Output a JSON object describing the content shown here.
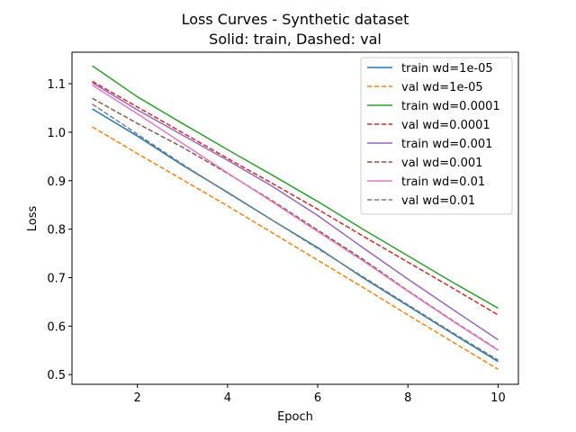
{
  "chart_data": {
    "type": "line",
    "title": "Loss Curves - Synthetic dataset",
    "subtitle": "Solid: train, Dashed: val",
    "xlabel": "Epoch",
    "ylabel": "Loss",
    "xlim": [
      0.55,
      10.45
    ],
    "ylim": [
      0.48,
      1.165
    ],
    "xticks": [
      2,
      4,
      6,
      8,
      10
    ],
    "yticks": [
      0.5,
      0.6,
      0.7,
      0.8,
      0.9,
      1.0,
      1.1
    ],
    "ytick_labels": [
      "0.5",
      "0.6",
      "0.7",
      "0.8",
      "0.9",
      "1.0",
      "1.1"
    ],
    "grid": false,
    "legend_position": "top-right",
    "x": [
      1,
      2,
      3,
      4,
      5,
      6,
      7,
      8,
      9,
      10
    ],
    "series": [
      {
        "name": "train wd=1e-05",
        "color": "#1f77b4",
        "dashed": false,
        "values": [
          1.048,
          0.992,
          0.932,
          0.876,
          0.818,
          0.762,
          0.7,
          0.642,
          0.584,
          0.527
        ]
      },
      {
        "name": "val wd=1e-05",
        "color": "#ff7f0e",
        "dashed": true,
        "values": [
          1.011,
          0.956,
          0.902,
          0.848,
          0.792,
          0.736,
          0.68,
          0.623,
          0.567,
          0.511
        ]
      },
      {
        "name": "train wd=0.0001",
        "color": "#2ca02c",
        "dashed": false,
        "values": [
          1.137,
          1.073,
          1.018,
          0.964,
          0.911,
          0.857,
          0.8,
          0.745,
          0.69,
          0.637
        ]
      },
      {
        "name": "val wd=0.0001",
        "color": "#d62728",
        "dashed": true,
        "values": [
          1.105,
          1.052,
          0.999,
          0.946,
          0.894,
          0.841,
          0.786,
          0.732,
          0.678,
          0.623
        ]
      },
      {
        "name": "train wd=0.001",
        "color": "#9467bd",
        "dashed": false,
        "values": [
          1.102,
          1.046,
          0.994,
          0.942,
          0.888,
          0.828,
          0.762,
          0.697,
          0.634,
          0.572
        ]
      },
      {
        "name": "val wd=0.001",
        "color": "#8c564b",
        "dashed": true,
        "values": [
          1.07,
          1.018,
          0.969,
          0.915,
          0.858,
          0.798,
          0.738,
          0.673,
          0.611,
          0.551
        ]
      },
      {
        "name": "train wd=0.01",
        "color": "#e377c2",
        "dashed": false,
        "values": [
          1.097,
          1.038,
          0.977,
          0.916,
          0.856,
          0.795,
          0.735,
          0.672,
          0.61,
          0.55
        ]
      },
      {
        "name": "val wd=0.01",
        "color": "#7f7f7f",
        "dashed": true,
        "values": [
          1.058,
          0.996,
          0.934,
          0.875,
          0.818,
          0.76,
          0.702,
          0.644,
          0.586,
          0.53
        ]
      }
    ]
  }
}
